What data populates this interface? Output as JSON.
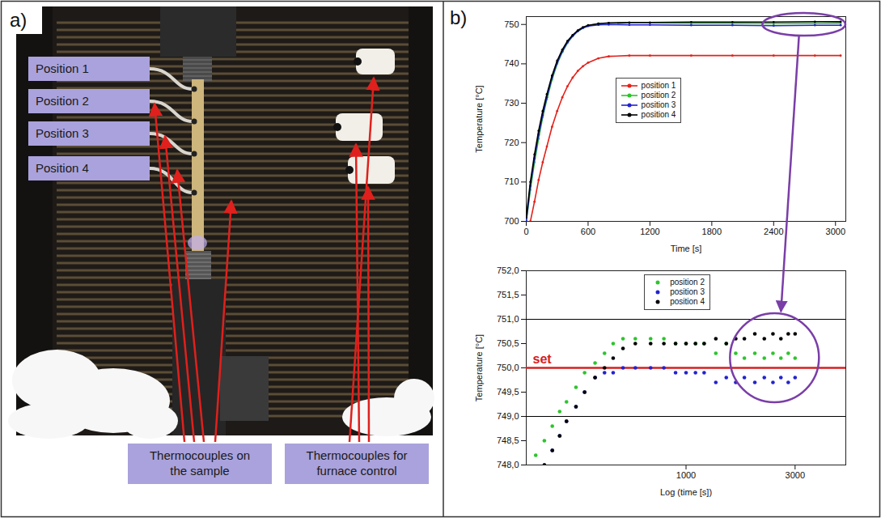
{
  "panel_a": {
    "label": "a)",
    "positions": [
      "Position 1",
      "Position 2",
      "Position 3",
      "Position 4"
    ],
    "captions": [
      "Thermocouples on the sample",
      "Thermocouples for furnace control"
    ]
  },
  "panel_b": {
    "label": "b)"
  },
  "chart_data": [
    {
      "type": "line",
      "marker": "circle",
      "x_label": "Time [s]",
      "y_label": "Temperature [°C]",
      "xlim": [
        0,
        3100
      ],
      "xticks": [
        0,
        600,
        1200,
        1800,
        2400,
        3000
      ],
      "ylim": [
        700,
        752
      ],
      "yticks": [
        700,
        710,
        720,
        730,
        740,
        750
      ],
      "legend": "top",
      "x": [
        0,
        40,
        80,
        120,
        160,
        200,
        250,
        300,
        350,
        400,
        450,
        500,
        550,
        600,
        700,
        800,
        1000,
        1200,
        1600,
        2000,
        2400,
        2800,
        3050
      ],
      "series": [
        {
          "name": "position 1",
          "color": "#e3221b",
          "values": [
            null,
            700,
            705,
            710.5,
            715,
            719,
            724,
            728,
            731.5,
            734.3,
            736.5,
            738.2,
            739.4,
            740.3,
            741.4,
            741.9,
            742.1,
            742.1,
            742.1,
            742.1,
            742.1,
            742.1,
            742.1
          ]
        },
        {
          "name": "position 2",
          "color": "#2dc42d",
          "values": [
            700,
            708,
            715,
            721,
            726.5,
            731,
            736,
            740,
            743,
            745.3,
            747,
            748.3,
            749.1,
            749.7,
            750.2,
            750.3,
            750.4,
            750.4,
            750.3,
            750.3,
            750.2,
            750.3,
            750.3
          ]
        },
        {
          "name": "position 3",
          "color": "#2323cf",
          "values": [
            700,
            709,
            716,
            722,
            727,
            731.5,
            736.5,
            740.3,
            743.2,
            745.5,
            747.1,
            748.3,
            749.1,
            749.6,
            749.9,
            750,
            749.9,
            749.9,
            749.8,
            749.8,
            749.7,
            749.8,
            749.8
          ]
        },
        {
          "name": "position 4",
          "color": "#000000",
          "values": [
            701,
            710,
            717,
            723,
            728,
            732.3,
            737,
            740.8,
            743.6,
            745.8,
            747.3,
            748.5,
            749.3,
            749.8,
            750.2,
            750.4,
            750.5,
            750.5,
            750.6,
            750.6,
            750.6,
            750.7,
            750.7
          ]
        }
      ]
    },
    {
      "type": "scatter",
      "marker": "circle",
      "log": "x",
      "x_label": "Log (time [s])",
      "y_label": "Temperature [°C]",
      "xlim": [
        200,
        5000
      ],
      "xticks": [
        1000,
        3000
      ],
      "ylim": [
        748,
        752
      ],
      "yticks": [
        {
          "value": 748,
          "label": "748,0"
        },
        {
          "value": 748.5,
          "label": "748,5"
        },
        {
          "value": 749,
          "label": "749,0"
        },
        {
          "value": 749.5,
          "label": "749,5"
        },
        {
          "value": 750,
          "label": "750,0"
        },
        {
          "value": 750.5,
          "label": "750,5"
        },
        {
          "value": 751,
          "label": "751,0"
        },
        {
          "value": 751.5,
          "label": "751,5"
        },
        {
          "value": 752,
          "label": "752,0"
        }
      ],
      "legend": "top",
      "hlines": [
        749,
        751
      ],
      "set": {
        "value": 750,
        "label": "set",
        "color": "#d42020"
      },
      "x": [
        220,
        240,
        260,
        280,
        300,
        330,
        360,
        400,
        440,
        480,
        530,
        600,
        700,
        800,
        900,
        1000,
        1100,
        1200,
        1350,
        1500,
        1650,
        1800,
        2000,
        2200,
        2400,
        2600,
        2800,
        3000
      ],
      "series": [
        {
          "name": "position 2",
          "color": "#2dc42d",
          "values": [
            748.2,
            748.5,
            748.8,
            749.1,
            749.3,
            749.6,
            749.9,
            750.1,
            750.3,
            750.5,
            750.6,
            750.6,
            750.6,
            750.6,
            750.5,
            750.5,
            750.5,
            750.5,
            750.3,
            750.5,
            750.3,
            750.2,
            750.3,
            750.2,
            750.3,
            750.2,
            750.3,
            750.2
          ]
        },
        {
          "name": "position 3",
          "color": "#2323cf",
          "values": [
            null,
            748,
            748.3,
            748.6,
            748.9,
            749.2,
            749.5,
            749.8,
            749.9,
            749.9,
            750,
            750,
            750,
            750,
            749.9,
            749.9,
            749.9,
            749.9,
            749.7,
            749.8,
            749.7,
            749.8,
            749.7,
            749.8,
            749.7,
            749.8,
            749.7,
            749.8
          ]
        },
        {
          "name": "position 4",
          "color": "#000000",
          "values": [
            null,
            748,
            748.3,
            748.6,
            748.9,
            749.2,
            749.5,
            749.8,
            750,
            750.2,
            750.4,
            750.5,
            750.5,
            750.5,
            750.5,
            750.5,
            750.5,
            750.5,
            750.6,
            750.5,
            750.6,
            750.6,
            750.7,
            750.6,
            750.7,
            750.6,
            750.7,
            750.7
          ]
        }
      ]
    }
  ]
}
